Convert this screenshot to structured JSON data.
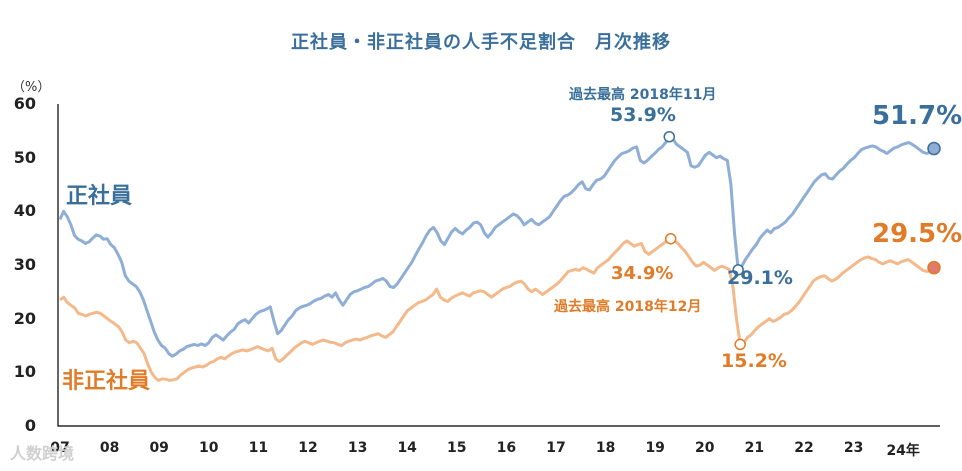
{
  "chart_data": {
    "type": "line",
    "title": "正社員・非正社員の人手不足割合　月次推移",
    "unit": "（%）",
    "ylim": [
      0,
      60
    ],
    "yticks": [
      "0",
      "10",
      "20",
      "30",
      "40",
      "50",
      "60"
    ],
    "xticks": [
      "07",
      "08",
      "09",
      "10",
      "11",
      "12",
      "13",
      "14",
      "15",
      "16",
      "17",
      "18",
      "19",
      "20",
      "21",
      "22",
      "23",
      "24年"
    ],
    "x_start_year": 2007,
    "x_end_year": 2024.75,
    "series": [
      {
        "name": "正社員",
        "color": "#8eaed6",
        "values": [
          38.5,
          40.0,
          39.0,
          37.5,
          35.5,
          34.8,
          34.5,
          34.0,
          34.3,
          35.0,
          35.6,
          35.4,
          34.8,
          34.9,
          33.8,
          33.2,
          32.0,
          30.5,
          28.0,
          27.0,
          26.5,
          26.0,
          25.0,
          23.5,
          21.5,
          19.5,
          17.5,
          16.0,
          15.0,
          14.5,
          13.5,
          13.0,
          13.4,
          14.0,
          14.3,
          14.8,
          15.0,
          15.2,
          15.0,
          15.3,
          15.0,
          15.5,
          16.5,
          17.0,
          16.5,
          16.0,
          16.8,
          17.5,
          18.0,
          19.0,
          19.5,
          19.8,
          19.2,
          20.0,
          20.8,
          21.3,
          21.5,
          21.8,
          22.2,
          19.5,
          17.2,
          17.8,
          18.8,
          19.8,
          20.5,
          21.5,
          22.0,
          22.3,
          22.5,
          22.8,
          23.3,
          23.6,
          23.8,
          24.2,
          24.5,
          24.0,
          24.8,
          23.5,
          22.5,
          23.5,
          24.5,
          25.0,
          25.2,
          25.5,
          25.8,
          26.0,
          26.5,
          27.0,
          27.2,
          27.5,
          27.0,
          26.0,
          25.8,
          26.5,
          27.5,
          28.5,
          29.5,
          30.5,
          31.8,
          33.0,
          34.2,
          35.5,
          36.5,
          37.0,
          36.0,
          34.5,
          33.8,
          35.0,
          36.2,
          36.8,
          36.2,
          35.8,
          36.5,
          37.0,
          37.8,
          38.0,
          37.5,
          36.0,
          35.2,
          36.0,
          37.0,
          37.5,
          38.0,
          38.5,
          39.0,
          39.5,
          39.2,
          38.5,
          37.5,
          38.0,
          38.5,
          37.8,
          37.5,
          38.0,
          38.5,
          39.0,
          40.0,
          41.0,
          42.0,
          42.8,
          43.0,
          43.5,
          44.2,
          45.0,
          45.5,
          44.2,
          44.0,
          45.0,
          45.8,
          46.0,
          46.5,
          47.5,
          48.5,
          49.5,
          50.2,
          50.8,
          51.0,
          51.3,
          51.8,
          52.0,
          49.5,
          49.0,
          49.5,
          50.2,
          50.8,
          51.5,
          52.0,
          52.8,
          53.9,
          53.5,
          52.5,
          52.0,
          51.5,
          51.0,
          48.5,
          48.2,
          48.5,
          49.5,
          50.5,
          51.0,
          50.5,
          50.0,
          50.3,
          49.8,
          49.5,
          45.0,
          36.0,
          29.1,
          29.8,
          31.0,
          32.0,
          33.0,
          33.8,
          35.0,
          35.8,
          36.5,
          36.0,
          36.8,
          37.0,
          37.5,
          38.0,
          38.8,
          39.5,
          40.5,
          41.5,
          42.5,
          43.5,
          44.5,
          45.5,
          46.2,
          46.8,
          47.0,
          46.2,
          46.0,
          46.8,
          47.5,
          48.0,
          48.8,
          49.5,
          50.0,
          50.8,
          51.5,
          51.8,
          52.0,
          52.2,
          52.0,
          51.5,
          51.2,
          50.8,
          51.3,
          51.8,
          52.0,
          52.4,
          52.6,
          52.8,
          52.5,
          52.0,
          51.5,
          51.0,
          50.8,
          51.0,
          51.7
        ]
      },
      {
        "name": "非正社員",
        "color": "#f3b98a",
        "values": [
          23.5,
          24.0,
          23.0,
          22.5,
          22.0,
          21.0,
          20.8,
          20.5,
          20.8,
          21.0,
          21.2,
          21.0,
          20.5,
          20.0,
          19.5,
          19.0,
          18.5,
          17.5,
          16.0,
          15.5,
          15.8,
          15.5,
          14.5,
          13.5,
          11.5,
          10.0,
          9.0,
          8.5,
          8.8,
          8.7,
          8.5,
          8.6,
          8.8,
          9.5,
          10.0,
          10.5,
          10.8,
          11.0,
          11.2,
          11.0,
          11.3,
          11.8,
          12.0,
          12.5,
          12.8,
          12.5,
          13.0,
          13.5,
          13.8,
          14.0,
          14.2,
          14.0,
          14.2,
          14.5,
          14.8,
          14.5,
          14.2,
          14.0,
          14.5,
          12.5,
          12.0,
          12.5,
          13.2,
          13.8,
          14.5,
          15.0,
          15.5,
          15.8,
          15.5,
          15.2,
          15.5,
          15.8,
          16.0,
          15.8,
          15.6,
          15.5,
          15.2,
          15.0,
          15.5,
          15.8,
          16.0,
          16.2,
          16.0,
          16.3,
          16.5,
          16.8,
          17.0,
          17.2,
          16.8,
          16.5,
          17.0,
          17.5,
          18.5,
          19.5,
          20.5,
          21.5,
          22.0,
          22.5,
          23.0,
          23.2,
          23.5,
          24.0,
          24.5,
          25.5,
          24.0,
          23.5,
          23.2,
          23.8,
          24.2,
          24.5,
          24.8,
          24.5,
          24.2,
          24.8,
          25.0,
          25.2,
          25.0,
          24.5,
          24.0,
          24.5,
          25.0,
          25.5,
          25.8,
          26.0,
          26.5,
          26.8,
          27.0,
          26.5,
          25.5,
          25.0,
          25.5,
          25.0,
          24.5,
          25.0,
          25.5,
          26.0,
          26.5,
          27.2,
          28.0,
          28.8,
          29.0,
          29.2,
          29.0,
          29.5,
          29.2,
          28.8,
          28.5,
          29.5,
          30.0,
          30.5,
          31.0,
          31.8,
          32.5,
          33.2,
          34.0,
          34.5,
          34.0,
          33.5,
          33.8,
          34.0,
          32.5,
          32.0,
          32.5,
          33.0,
          33.5,
          34.0,
          34.5,
          34.9,
          34.5,
          34.0,
          33.2,
          32.5,
          31.5,
          30.5,
          29.8,
          30.0,
          30.5,
          30.0,
          29.5,
          29.0,
          29.5,
          29.8,
          29.5,
          29.2,
          26.0,
          20.0,
          15.2,
          15.5,
          16.5,
          17.0,
          17.8,
          18.5,
          19.0,
          19.5,
          20.0,
          19.5,
          19.8,
          20.2,
          20.8,
          21.0,
          21.5,
          22.2,
          23.0,
          24.0,
          25.0,
          26.0,
          27.0,
          27.5,
          27.8,
          28.0,
          27.5,
          27.0,
          27.3,
          27.8,
          28.5,
          29.0,
          29.5,
          30.0,
          30.5,
          31.0,
          31.3,
          31.5,
          31.2,
          31.0,
          30.5,
          30.2,
          30.5,
          30.8,
          30.5,
          30.2,
          30.6,
          30.8,
          31.0,
          30.5,
          30.0,
          29.5,
          29.0,
          28.8,
          29.0,
          29.5
        ]
      }
    ],
    "annotations": {
      "seishain_label": "正社員",
      "hiseishain_label": "非正社員",
      "peak_seishain_note": "過去最高 2018年11月",
      "peak_seishain_value": "53.9%",
      "low_seishain_value": "29.1%",
      "latest_seishain_value": "51.7%",
      "peak_hiseishain_note": "過去最高 2018年12月",
      "peak_hiseishain_value": "34.9%",
      "low_hiseishain_value": "15.2%",
      "latest_hiseishain_value": "29.5%"
    },
    "colors": {
      "title": "#3a6f9b",
      "seishain_text": "#3a6f9b",
      "hiseishain_text": "#e07b28",
      "seishain_end_marker": "#8eaed6",
      "hiseishain_end_marker": "#e07b6a"
    },
    "watermark": "人数跨境"
  }
}
